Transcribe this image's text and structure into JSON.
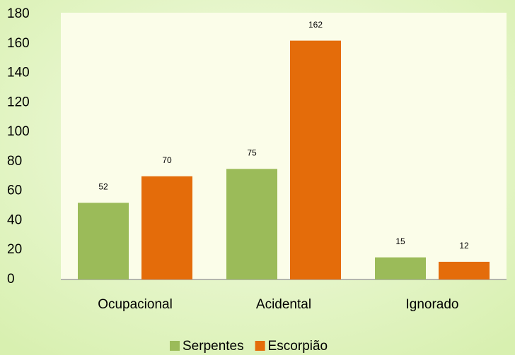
{
  "chart_data": {
    "type": "bar",
    "categories": [
      "Ocupacional",
      "Acidental",
      "Ignorado"
    ],
    "series": [
      {
        "name": "Serpentes",
        "color": "#9bbb59",
        "values": [
          52,
          75,
          15
        ]
      },
      {
        "name": "Escorpião",
        "color": "#e46c0a",
        "values": [
          70,
          162,
          12
        ]
      }
    ],
    "ylim": [
      0,
      180
    ],
    "yticks": [
      0,
      20,
      40,
      60,
      80,
      100,
      120,
      140,
      160,
      180
    ],
    "legend": "bottom"
  }
}
